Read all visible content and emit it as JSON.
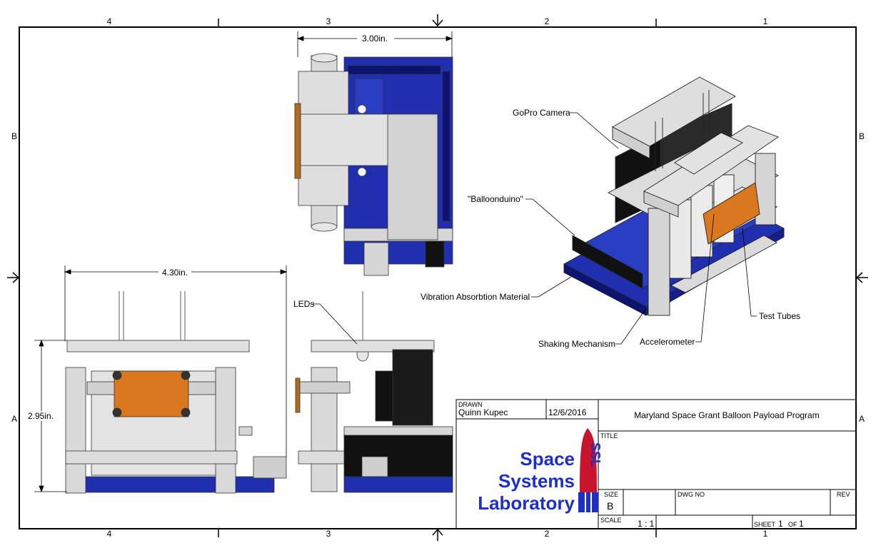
{
  "zones": {
    "columns": [
      "4",
      "3",
      "2",
      "1"
    ],
    "rows": [
      "B",
      "A"
    ]
  },
  "dimensions": {
    "top_width": "3.00in.",
    "front_width": "4.30in.",
    "front_height": "2.95in."
  },
  "callouts": {
    "gopro": "GoPro Camera",
    "balloonduino": "\"Balloonduino\"",
    "vibration": "Vibration Absorbtion Material",
    "shaking": "Shaking Mechanism",
    "accelerometer": "Accelerometer",
    "test_tubes": "Test Tubes",
    "leds": "LEDs"
  },
  "title_block": {
    "drawn_label": "DRAWN",
    "drawn_by": "Quinn Kupec",
    "date": "12/6/2016",
    "program": "Maryland Space Grant Balloon Payload Program",
    "title_label": "TITLE",
    "size_label": "SIZE",
    "size_value": "B",
    "dwg_label": "DWG NO",
    "rev_label": "REV",
    "scale_label": "SCALE",
    "scale_value": "1 : 1",
    "sheet_label": "SHEET",
    "sheet_num": "1",
    "of_label": "OF",
    "sheet_total": "1",
    "logo_line1": "Space",
    "logo_line2": "Systems",
    "logo_line3": "Laboratory",
    "logo_mark": "SSL"
  },
  "colors": {
    "board_blue": "#1f2fb0",
    "board_dark": "#0c1470",
    "pcb_orange": "#d9781e",
    "frame_gray": "#d6d6d6",
    "logo_blue": "#1c2fc9",
    "logo_red": "#c8142c"
  }
}
